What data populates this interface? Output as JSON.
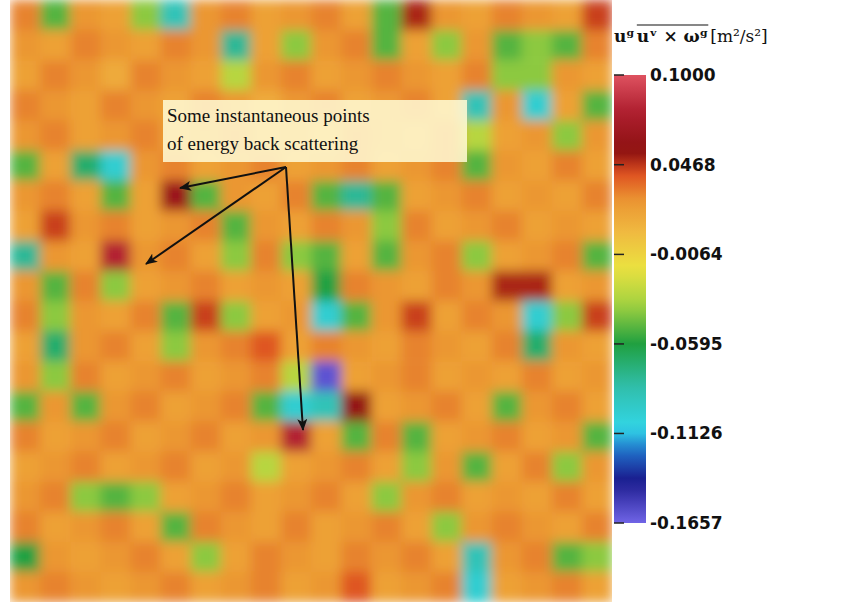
{
  "chart_data": {
    "type": "heatmap",
    "tick_labels": false,
    "annotation": [
      "Some instantaneous points",
      "of energy back scattering"
    ],
    "colorbar": {
      "title": [
        "uᵍ",
        "uᵛ × ωᵍ",
        "[m²/s²]"
      ],
      "range": [
        -0.1657,
        0.1
      ],
      "ticks": [
        {
          "value": 0.1,
          "label": "0.1000"
        },
        {
          "value": 0.0468,
          "label": "0.0468"
        },
        {
          "value": -0.0064,
          "label": "-0.0064"
        },
        {
          "value": -0.0595,
          "label": "-0.0595"
        },
        {
          "value": -0.1126,
          "label": "-0.1126"
        },
        {
          "value": -0.1657,
          "label": "-0.1657"
        }
      ]
    },
    "cells": [
      [
        0.03,
        -0.05,
        0.025,
        0.02,
        -0.04,
        -0.09,
        0.025,
        0.03,
        0.02,
        0.025,
        0.03,
        0.02,
        -0.05,
        0.05,
        0.025,
        0.02,
        0.03,
        0.025,
        0.02,
        0.045
      ],
      [
        0.025,
        0.02,
        0.03,
        0.025,
        0.02,
        0.03,
        0.025,
        -0.08,
        0.02,
        -0.04,
        0.025,
        0.03,
        -0.05,
        0.02,
        -0.04,
        0.025,
        -0.05,
        -0.04,
        -0.05,
        0.03
      ],
      [
        0.02,
        0.03,
        0.025,
        0.015,
        0.03,
        0.025,
        0.02,
        -0.03,
        0.025,
        0.03,
        0.02,
        0.025,
        0.03,
        0.025,
        0.02,
        0.03,
        -0.04,
        -0.04,
        0.025,
        0.02
      ],
      [
        0.03,
        0.025,
        0.02,
        0.03,
        0.025,
        0.02,
        0.03,
        0.025,
        0.015,
        0.025,
        0.03,
        0.02,
        0.025,
        0.03,
        0.02,
        -0.09,
        0.025,
        -0.1,
        0.02,
        -0.05
      ],
      [
        0.025,
        0.03,
        0.02,
        0.025,
        0.03,
        0.02,
        0.025,
        0.03,
        0.02,
        0.025,
        0.015,
        0.03,
        0.025,
        0.02,
        0.03,
        -0.03,
        0.02,
        0.025,
        -0.04,
        0.025
      ],
      [
        -0.05,
        0.02,
        -0.07,
        -0.1,
        0.025,
        0.03,
        0.02,
        0.025,
        0.03,
        0.02,
        0.025,
        0.03,
        0.02,
        0.025,
        0.03,
        -0.05,
        0.025,
        0.02,
        0.03,
        0.02
      ],
      [
        0.025,
        0.03,
        0.02,
        -0.05,
        0.02,
        0.065,
        -0.05,
        0.025,
        0.02,
        0.03,
        -0.05,
        -0.08,
        -0.05,
        0.02,
        0.025,
        0.03,
        0.02,
        0.025,
        0.02,
        0.03
      ],
      [
        0.02,
        0.045,
        0.025,
        0.03,
        0.02,
        0.025,
        0.03,
        -0.05,
        0.025,
        0.02,
        0.03,
        0.025,
        -0.04,
        0.03,
        0.02,
        0.025,
        0.03,
        0.02,
        0.025,
        0.02
      ],
      [
        -0.08,
        0.025,
        0.02,
        0.08,
        0.025,
        0.03,
        0.02,
        -0.04,
        0.03,
        -0.04,
        -0.05,
        0.02,
        -0.05,
        0.025,
        0.03,
        -0.04,
        0.02,
        0.025,
        0.03,
        -0.05
      ],
      [
        0.025,
        -0.05,
        0.03,
        -0.04,
        0.02,
        0.025,
        0.03,
        0.02,
        0.025,
        0.02,
        -0.06,
        0.03,
        0.025,
        0.02,
        0.03,
        0.025,
        0.05,
        0.05,
        0.02,
        0.025
      ],
      [
        0.03,
        -0.04,
        0.025,
        0.02,
        0.03,
        -0.05,
        0.045,
        -0.04,
        0.02,
        0.025,
        -0.1,
        -0.05,
        0.025,
        0.045,
        0.02,
        0.03,
        0.025,
        -0.1,
        -0.04,
        0.045
      ],
      [
        0.02,
        -0.07,
        0.025,
        0.03,
        0.02,
        -0.04,
        0.025,
        0.03,
        0.04,
        0.02,
        0.03,
        0.025,
        0.02,
        0.03,
        0.025,
        0.02,
        0.03,
        -0.07,
        0.025,
        0.02
      ],
      [
        0.025,
        -0.04,
        0.03,
        0.02,
        0.025,
        0.03,
        0.02,
        0.025,
        0.03,
        -0.03,
        -0.16,
        0.02,
        0.025,
        0.03,
        0.02,
        0.025,
        0.02,
        0.03,
        0.02,
        0.025
      ],
      [
        -0.05,
        0.025,
        -0.05,
        0.025,
        0.03,
        0.02,
        0.025,
        0.03,
        -0.05,
        -0.1,
        -0.09,
        0.06,
        0.02,
        0.025,
        0.03,
        0.02,
        -0.05,
        0.025,
        0.03,
        0.02
      ],
      [
        0.03,
        0.02,
        0.025,
        0.03,
        0.02,
        0.025,
        0.03,
        0.02,
        0.025,
        0.08,
        0.02,
        -0.05,
        0.03,
        -0.05,
        0.02,
        0.025,
        0.03,
        0.02,
        0.025,
        -0.05
      ],
      [
        0.02,
        0.025,
        0.03,
        0.02,
        0.025,
        0.03,
        0.02,
        0.025,
        -0.03,
        0.02,
        0.025,
        0.03,
        0.02,
        -0.04,
        0.025,
        -0.05,
        0.02,
        0.03,
        -0.04,
        0.025
      ],
      [
        0.025,
        0.03,
        -0.04,
        -0.05,
        -0.04,
        0.02,
        0.025,
        0.03,
        0.02,
        0.025,
        0.03,
        0.02,
        -0.04,
        0.025,
        0.03,
        0.02,
        0.025,
        0.02,
        0.03,
        0.02
      ],
      [
        0.03,
        0.02,
        0.025,
        0.03,
        0.02,
        -0.05,
        0.03,
        0.025,
        0.02,
        0.03,
        0.02,
        0.025,
        0.03,
        0.02,
        -0.04,
        0.025,
        0.03,
        0.025,
        0.02,
        0.03
      ],
      [
        -0.06,
        0.025,
        0.02,
        0.025,
        0.03,
        0.02,
        -0.04,
        0.02,
        0.03,
        0.025,
        0.02,
        0.03,
        0.025,
        0.03,
        0.02,
        -0.09,
        0.025,
        0.03,
        -0.05,
        -0.04
      ],
      [
        0.025,
        0.03,
        0.025,
        0.02,
        0.025,
        0.03,
        0.02,
        0.025,
        0.03,
        0.02,
        0.025,
        0.04,
        0.02,
        0.025,
        0.03,
        -0.1,
        0.02,
        0.025,
        0.03,
        0.02
      ]
    ]
  }
}
